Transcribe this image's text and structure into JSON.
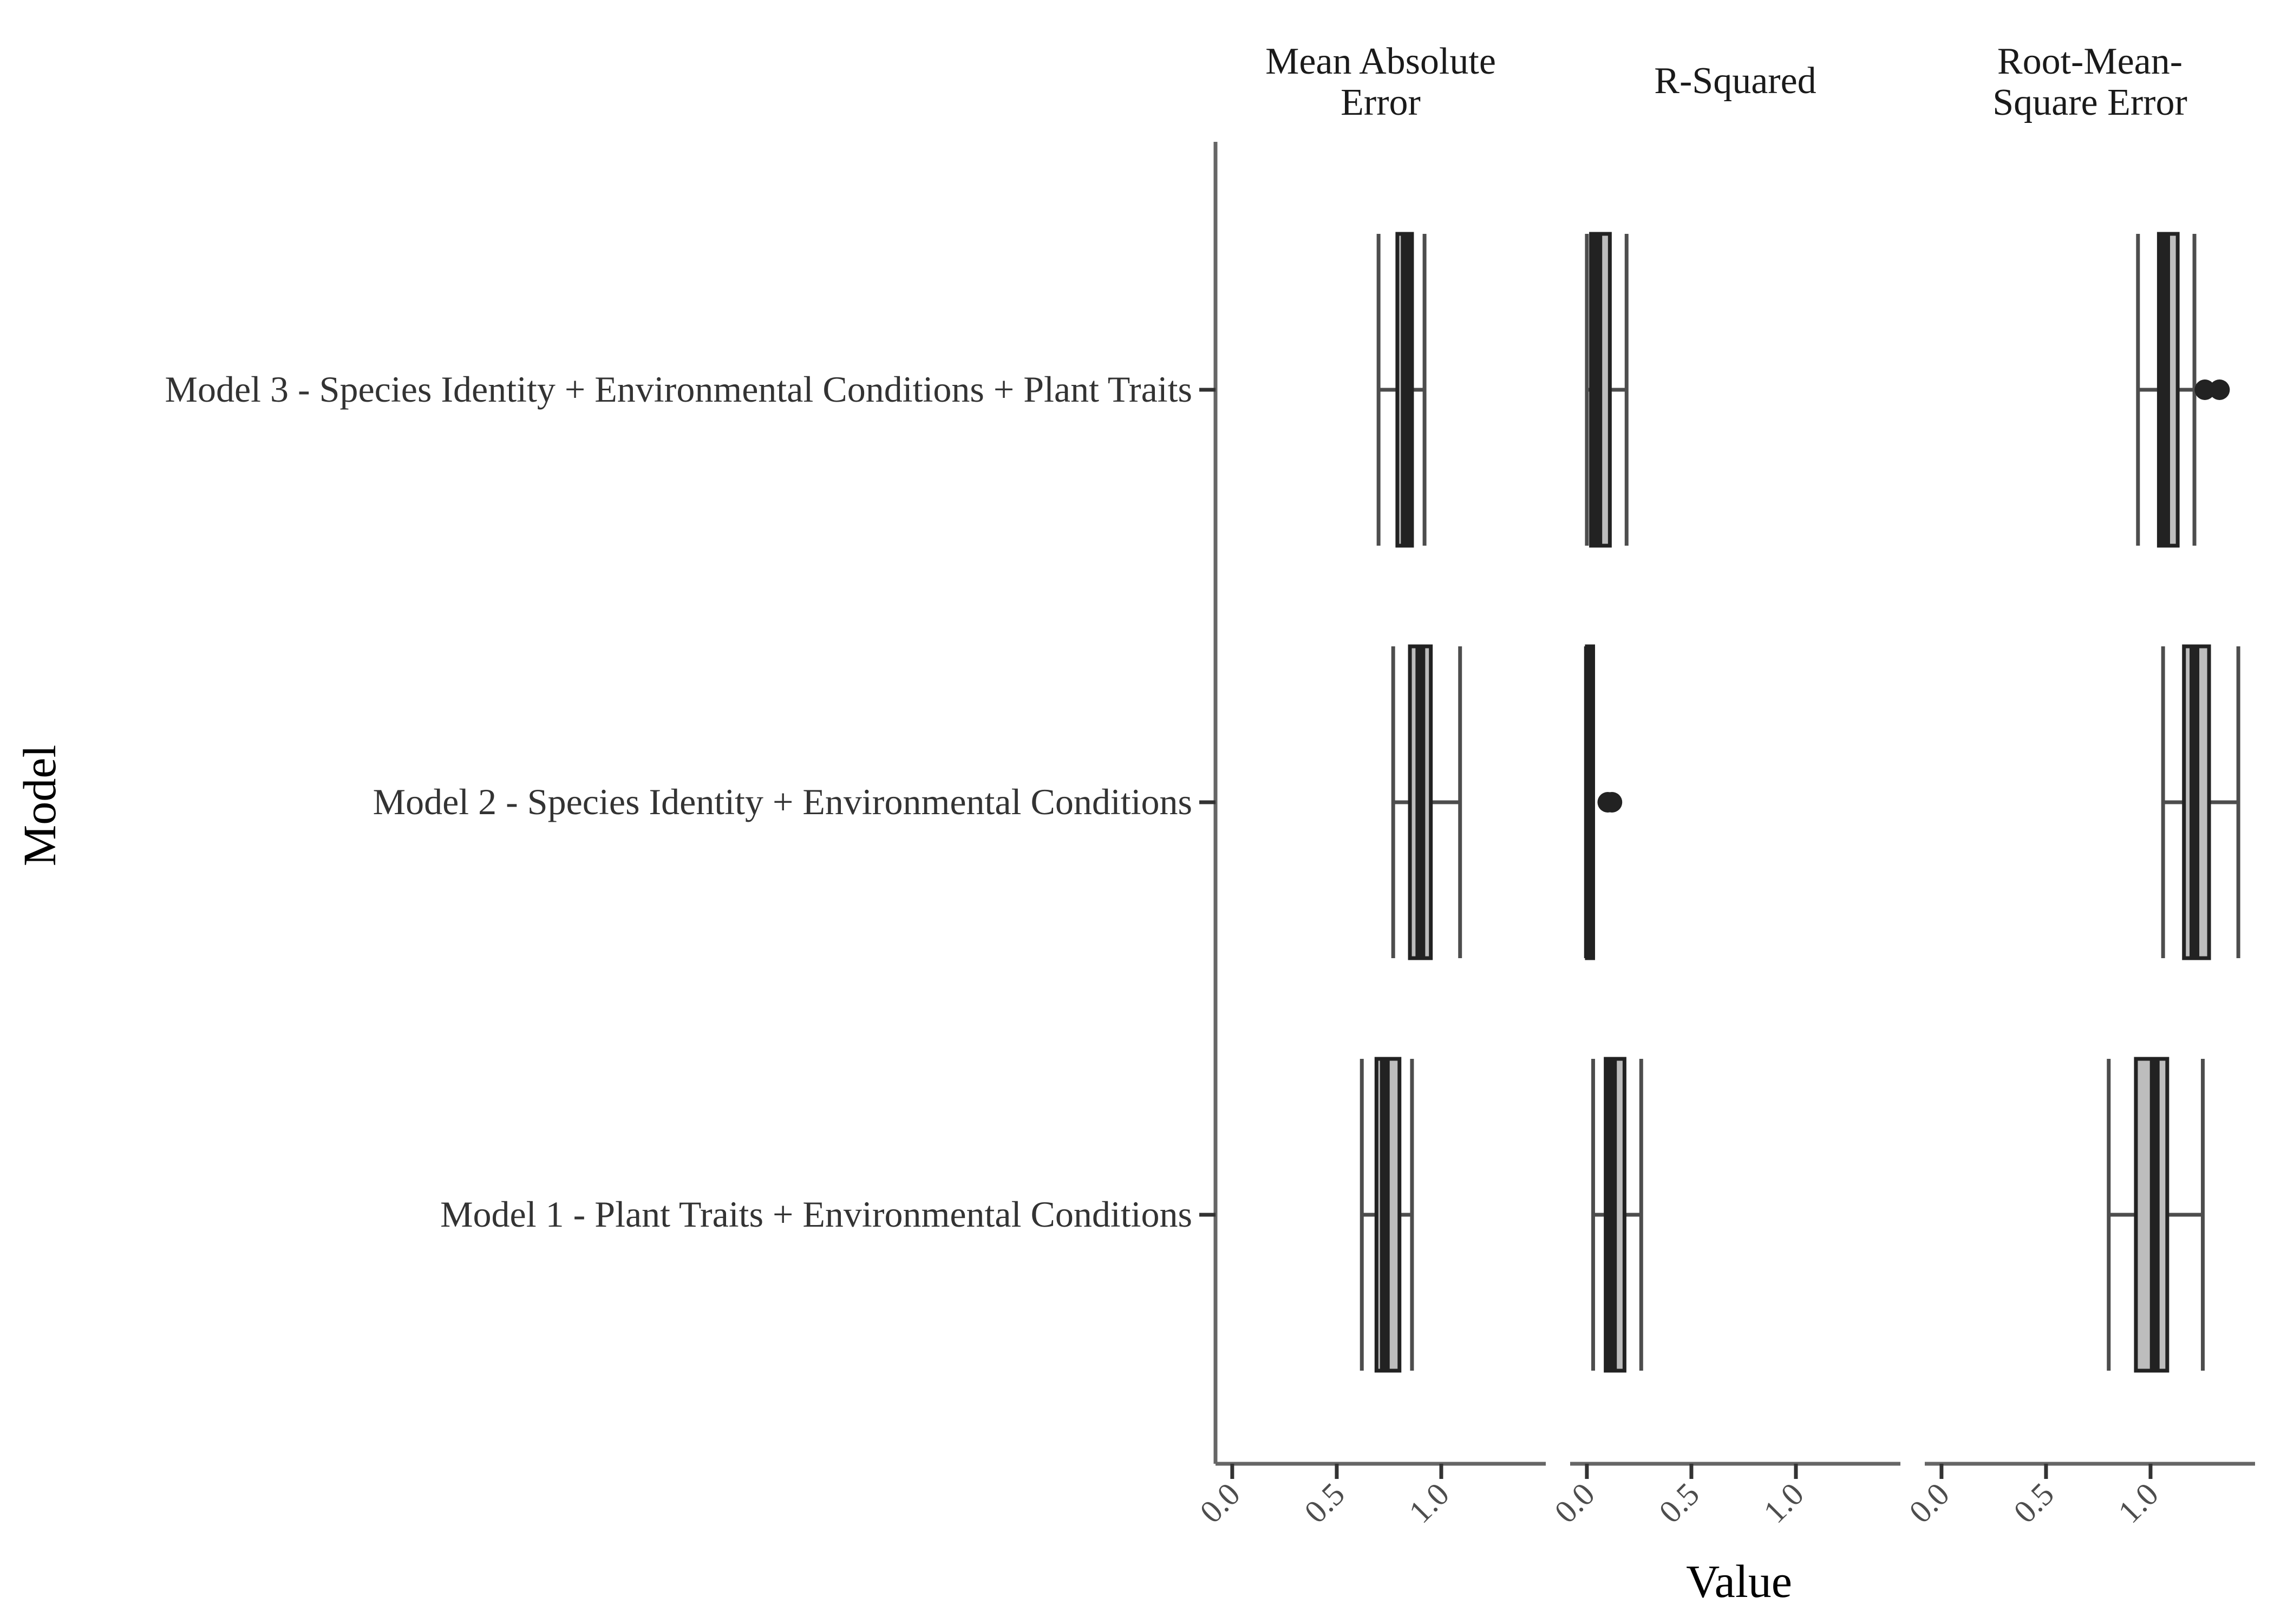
{
  "chart_data": {
    "type": "boxplot",
    "orientation": "horizontal",
    "xlabel": "Value",
    "ylabel": "Model",
    "xlim": [
      -0.08,
      1.5
    ],
    "xticks": [
      "0.0",
      "0.5",
      "1.0"
    ],
    "xtick_values": [
      0.0,
      0.5,
      1.0
    ],
    "categories": [
      "Model 3 - Species Identity + Environmental Conditions + Plant Traits",
      "Model 2 - Species Identity + Environmental Conditions",
      "Model 1 - Plant Traits + Environmental Conditions"
    ],
    "facets": [
      {
        "title_lines": [
          "Mean Absolute",
          "Error"
        ],
        "boxes": [
          {
            "category": "Model 3 - Species Identity + Environmental Conditions + Plant Traits",
            "whisker_low": 0.7,
            "q1": 0.79,
            "median": 0.83,
            "q3": 0.86,
            "whisker_high": 0.92,
            "outliers": []
          },
          {
            "category": "Model 2 - Species Identity + Environmental Conditions",
            "whisker_low": 0.77,
            "q1": 0.85,
            "median": 0.9,
            "q3": 0.95,
            "whisker_high": 1.09,
            "outliers": []
          },
          {
            "category": "Model 1 - Plant Traits + Environmental Conditions",
            "whisker_low": 0.62,
            "q1": 0.69,
            "median": 0.73,
            "q3": 0.8,
            "whisker_high": 0.86,
            "outliers": []
          }
        ]
      },
      {
        "title_lines": [
          "R-Squared"
        ],
        "boxes": [
          {
            "category": "Model 3 - Species Identity + Environmental Conditions + Plant Traits",
            "whisker_low": 0.0,
            "q1": 0.02,
            "median": 0.05,
            "q3": 0.11,
            "whisker_high": 0.19,
            "outliers": []
          },
          {
            "category": "Model 2 - Species Identity + Environmental Conditions",
            "whisker_low": 0.0,
            "q1": 0.0,
            "median": 0.01,
            "q3": 0.03,
            "whisker_high": 0.03,
            "outliers": [
              0.1,
              0.12
            ]
          },
          {
            "category": "Model 1 - Plant Traits + Environmental Conditions",
            "whisker_low": 0.03,
            "q1": 0.09,
            "median": 0.12,
            "q3": 0.18,
            "whisker_high": 0.26,
            "outliers": []
          }
        ]
      },
      {
        "title_lines": [
          "Root-Mean-",
          "Square Error"
        ],
        "boxes": [
          {
            "category": "Model 3 - Species Identity + Environmental Conditions + Plant Traits",
            "whisker_low": 0.94,
            "q1": 1.04,
            "median": 1.07,
            "q3": 1.13,
            "whisker_high": 1.21,
            "outliers": [
              1.26,
              1.33
            ]
          },
          {
            "category": "Model 2 - Species Identity + Environmental Conditions",
            "whisker_low": 1.06,
            "q1": 1.16,
            "median": 1.21,
            "q3": 1.28,
            "whisker_high": 1.42,
            "outliers": []
          },
          {
            "category": "Model 1 - Plant Traits + Environmental Conditions",
            "whisker_low": 0.8,
            "q1": 0.93,
            "median": 1.02,
            "q3": 1.08,
            "whisker_high": 1.25,
            "outliers": []
          }
        ]
      }
    ],
    "colors": {
      "box_fill": "#bdbdbd",
      "box_stroke": "#222222",
      "whisker": "#4d4d4d",
      "axis": "#666666",
      "outlier": "#222222"
    }
  }
}
